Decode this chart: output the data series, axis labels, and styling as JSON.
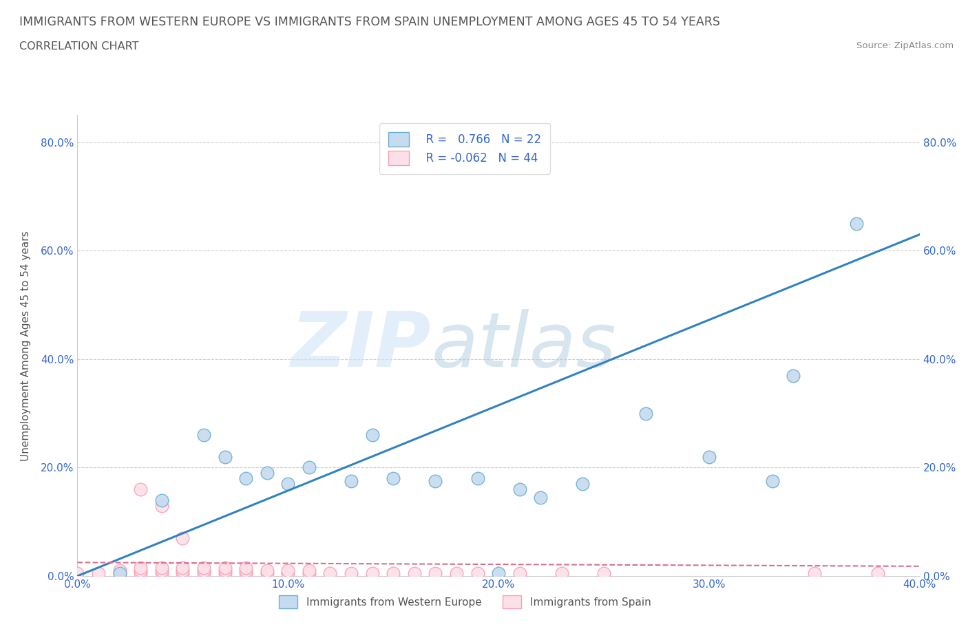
{
  "title": "IMMIGRANTS FROM WESTERN EUROPE VS IMMIGRANTS FROM SPAIN UNEMPLOYMENT AMONG AGES 45 TO 54 YEARS",
  "subtitle": "CORRELATION CHART",
  "source": "Source: ZipAtlas.com",
  "xlabel": "",
  "ylabel": "Unemployment Among Ages 45 to 54 years",
  "xlim": [
    0.0,
    0.4
  ],
  "ylim": [
    0.0,
    0.85
  ],
  "xtick_labels": [
    "0.0%",
    "",
    "10.0%",
    "",
    "20.0%",
    "",
    "30.0%",
    "",
    "40.0%"
  ],
  "ytick_labels": [
    "0.0%",
    "20.0%",
    "40.0%",
    "60.0%",
    "80.0%"
  ],
  "ytick_values": [
    0.0,
    0.2,
    0.4,
    0.6,
    0.8
  ],
  "xtick_values": [
    0.0,
    0.05,
    0.1,
    0.15,
    0.2,
    0.25,
    0.3,
    0.35,
    0.4
  ],
  "color_blue": "#6baed6",
  "color_pink": "#fa9fb5",
  "color_blue_fill": "#c6dbef",
  "color_pink_fill": "#fce0e8",
  "color_blue_line": "#3182bd",
  "color_pink_line": "#d47090",
  "blue_scatter_x": [
    0.02,
    0.04,
    0.06,
    0.07,
    0.08,
    0.09,
    0.1,
    0.11,
    0.13,
    0.14,
    0.15,
    0.17,
    0.19,
    0.21,
    0.22,
    0.24,
    0.33,
    0.34,
    0.37,
    0.2,
    0.27,
    0.3
  ],
  "blue_scatter_y": [
    0.005,
    0.14,
    0.26,
    0.22,
    0.18,
    0.19,
    0.17,
    0.2,
    0.175,
    0.26,
    0.18,
    0.175,
    0.18,
    0.16,
    0.145,
    0.17,
    0.175,
    0.37,
    0.65,
    0.005,
    0.3,
    0.22
  ],
  "pink_scatter_x": [
    0.0,
    0.01,
    0.02,
    0.02,
    0.03,
    0.03,
    0.03,
    0.03,
    0.04,
    0.04,
    0.04,
    0.04,
    0.05,
    0.05,
    0.05,
    0.05,
    0.06,
    0.06,
    0.06,
    0.07,
    0.07,
    0.07,
    0.08,
    0.08,
    0.08,
    0.09,
    0.09,
    0.1,
    0.1,
    0.11,
    0.11,
    0.12,
    0.13,
    0.14,
    0.15,
    0.16,
    0.17,
    0.18,
    0.19,
    0.21,
    0.23,
    0.25,
    0.35,
    0.38
  ],
  "pink_scatter_y": [
    0.005,
    0.005,
    0.005,
    0.01,
    0.005,
    0.01,
    0.015,
    0.16,
    0.005,
    0.01,
    0.015,
    0.13,
    0.005,
    0.01,
    0.015,
    0.07,
    0.005,
    0.01,
    0.015,
    0.005,
    0.01,
    0.015,
    0.005,
    0.01,
    0.015,
    0.005,
    0.01,
    0.005,
    0.01,
    0.005,
    0.01,
    0.005,
    0.005,
    0.005,
    0.005,
    0.005,
    0.005,
    0.005,
    0.005,
    0.005,
    0.005,
    0.005,
    0.005,
    0.005
  ],
  "blue_trend_x": [
    0.0,
    0.4
  ],
  "blue_trend_y": [
    0.0,
    0.63
  ],
  "pink_trend_x": [
    0.0,
    0.4
  ],
  "pink_trend_y": [
    0.025,
    0.018
  ],
  "grid_color": "#cccccc",
  "background_color": "#ffffff",
  "title_color": "#555555",
  "tick_color": "#3366cc"
}
